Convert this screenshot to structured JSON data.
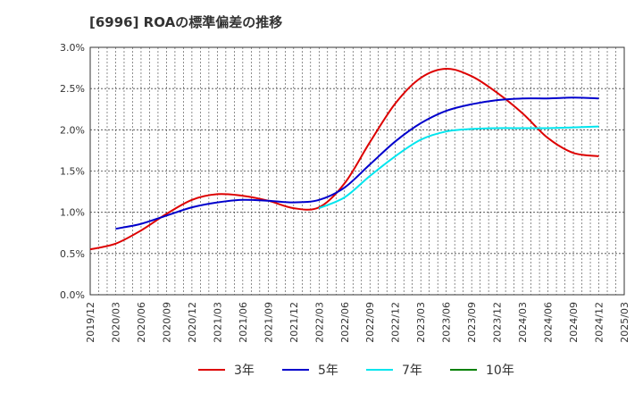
{
  "chart_data": {
    "type": "line",
    "title": "[6996]  ROAの標準偏差の推移",
    "xlabel": "",
    "ylabel": "",
    "ylim": [
      0,
      3.0
    ],
    "yticks": [
      "0.0%",
      "0.5%",
      "1.0%",
      "1.5%",
      "2.0%",
      "2.5%",
      "3.0%"
    ],
    "ytick_values": [
      0,
      0.5,
      1.0,
      1.5,
      2.0,
      2.5,
      3.0
    ],
    "categories": [
      "2019/12",
      "2020/03",
      "2020/06",
      "2020/09",
      "2020/12",
      "2021/03",
      "2021/06",
      "2021/09",
      "2021/12",
      "2022/03",
      "2022/06",
      "2022/09",
      "2022/12",
      "2023/03",
      "2023/06",
      "2023/09",
      "2023/12",
      "2024/03",
      "2024/06",
      "2024/09",
      "2024/12",
      "2025/03"
    ],
    "grid": true,
    "legend_position": "bottom",
    "series": [
      {
        "name": "3年",
        "color": "#dd0000",
        "values": [
          0.55,
          0.62,
          0.78,
          0.98,
          1.15,
          1.22,
          1.2,
          1.14,
          1.05,
          1.06,
          1.35,
          1.85,
          2.32,
          2.63,
          2.74,
          2.65,
          2.45,
          2.2,
          1.9,
          1.72,
          1.68,
          null
        ]
      },
      {
        "name": "5年",
        "color": "#0000cc",
        "values": [
          null,
          0.8,
          0.86,
          0.96,
          1.06,
          1.12,
          1.15,
          1.14,
          1.12,
          1.15,
          1.3,
          1.58,
          1.86,
          2.08,
          2.23,
          2.31,
          2.36,
          2.38,
          2.38,
          2.39,
          2.38,
          null
        ]
      },
      {
        "name": "7年",
        "color": "#00e5ee",
        "values": [
          null,
          null,
          null,
          null,
          null,
          null,
          null,
          null,
          null,
          1.05,
          1.18,
          1.44,
          1.68,
          1.88,
          1.98,
          2.01,
          2.02,
          2.02,
          2.02,
          2.03,
          2.04,
          null
        ]
      },
      {
        "name": "10年",
        "color": "#008000",
        "values": [
          null,
          null,
          null,
          null,
          null,
          null,
          null,
          null,
          null,
          null,
          null,
          null,
          null,
          null,
          null,
          null,
          null,
          null,
          null,
          null,
          null,
          null
        ]
      }
    ]
  }
}
